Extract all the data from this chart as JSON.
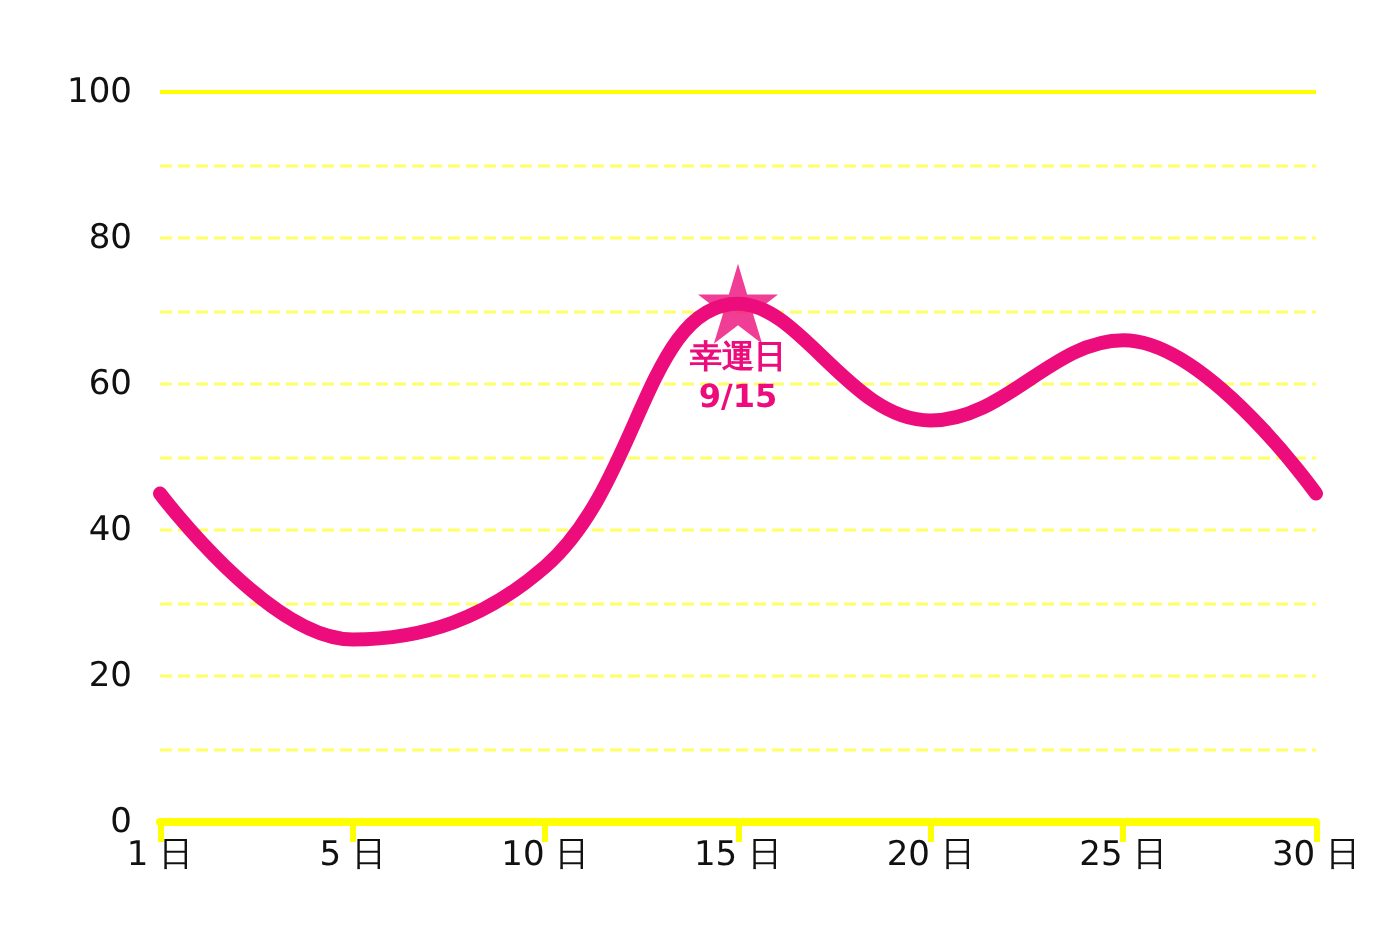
{
  "chart_data": {
    "type": "line",
    "categories": [
      "1 日",
      "5 日",
      "10 日",
      "15 日",
      "20 日",
      "25 日",
      "30 日"
    ],
    "series": [
      {
        "color": "#ec0c7c",
        "values": [
          45,
          25,
          35,
          71,
          55,
          66,
          45
        ]
      },
      {
        "type": "scatter",
        "marker": "star",
        "color": "#ec0c7c",
        "values": [
          null,
          null,
          null,
          71,
          null,
          null,
          null
        ]
      }
    ],
    "ylim": [
      0,
      100
    ],
    "yticks": [
      0,
      {
        "value": 10,
        "label": null
      },
      20,
      {
        "value": 30,
        "label": null
      },
      40,
      {
        "value": 50,
        "label": null
      },
      60,
      {
        "value": 70,
        "label": null
      },
      80,
      {
        "value": 90,
        "label": null
      },
      100
    ],
    "grid": "y",
    "marker": "none",
    "line_style": "solid",
    "annotations": [
      {
        "text": "幸運日\n9/15",
        "x": "15 日",
        "y": 71
      }
    ]
  }
}
